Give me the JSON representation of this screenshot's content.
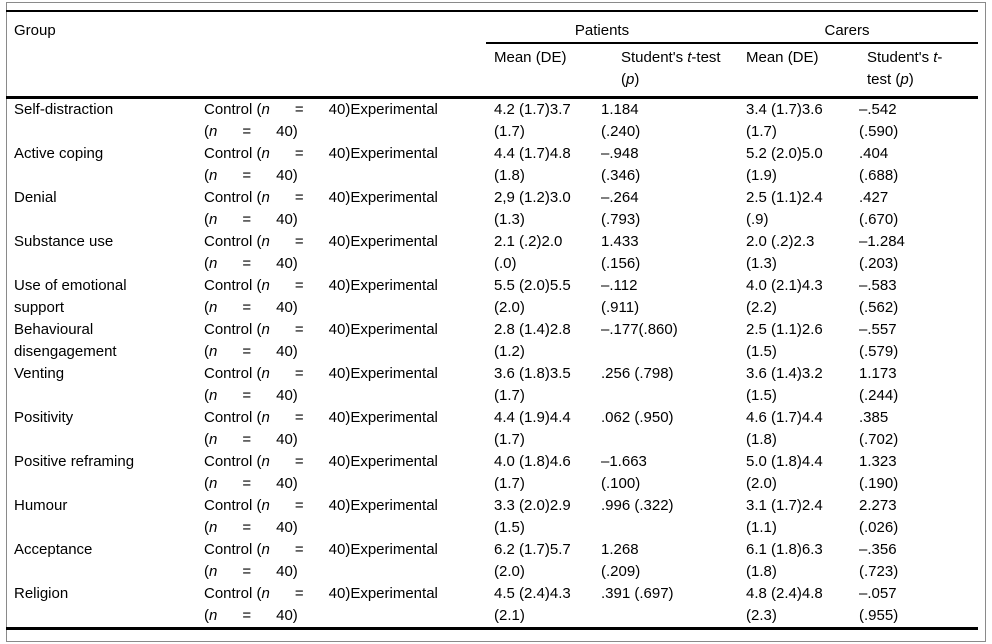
{
  "header": {
    "group_label": "Group",
    "patients_label": "Patients",
    "carers_label": "Carers",
    "patients_mean_label": "Mean (DE)",
    "patients_ttest_label": "Student's <i>t</i>-test\n(<i>p</i>)",
    "carers_mean_label": "Mean (DE)",
    "carers_ttest_label": "Student's <i>t</i>-\ntest (<i>p</i>)"
  },
  "cohort_cell": "Control (<i>n</i>      =      40)Experimental\n(<i>n</i>      =      40)",
  "rows": [
    {
      "group": "Self-distraction",
      "p_mean": "4.2 (1.7)3.7\n(1.7)",
      "p_t": "1.184\n(.240)",
      "c_mean": "3.4 (1.7)3.6\n(1.7)",
      "c_t": "–.542\n(.590)"
    },
    {
      "group": "Active coping",
      "p_mean": "4.4 (1.7)4.8\n(1.8)",
      "p_t": "–.948\n(.346)",
      "c_mean": "5.2 (2.0)5.0\n(1.9)",
      "c_t": ".404\n(.688)"
    },
    {
      "group": "Denial",
      "p_mean": "2,9 (1.2)3.0\n(1.3)",
      "p_t": "–.264\n(.793)",
      "c_mean": "2.5 (1.1)2.4\n(.9)",
      "c_t": ".427\n(.670)"
    },
    {
      "group": "Substance use",
      "p_mean": "2.1 (.2)2.0\n(.0)",
      "p_t": "1.433\n(.156)",
      "c_mean": "2.0 (.2)2.3\n(1.3)",
      "c_t": "–1.284\n(.203)"
    },
    {
      "group": "Use of emotional\nsupport",
      "p_mean": "5.5 (2.0)5.5\n(2.0)",
      "p_t": "–.112\n(.911)",
      "c_mean": "4.0 (2.1)4.3\n(2.2)",
      "c_t": "–.583\n(.562)"
    },
    {
      "group": "Behavioural\ndisengagement",
      "p_mean": "2.8 (1.4)2.8\n(1.2)",
      "p_t": "–.177(.860)",
      "c_mean": "2.5 (1.1)2.6\n(1.5)",
      "c_t": "–.557\n(.579)"
    },
    {
      "group": "Venting",
      "p_mean": "3.6 (1.8)3.5\n(1.7)",
      "p_t": ".256 (.798)",
      "c_mean": "3.6 (1.4)3.2\n(1.5)",
      "c_t": "1.173\n(.244)"
    },
    {
      "group": "Positivity",
      "p_mean": "4.4 (1.9)4.4\n(1.7)",
      "p_t": ".062 (.950)",
      "c_mean": "4.6 (1.7)4.4\n(1.8)",
      "c_t": ".385\n(.702)"
    },
    {
      "group": "Positive reframing",
      "p_mean": "4.0 (1.8)4.6\n(1.7)",
      "p_t": "–1.663\n(.100)",
      "c_mean": "5.0 (1.8)4.4\n(2.0)",
      "c_t": "1.323\n(.190)"
    },
    {
      "group": "Humour",
      "p_mean": "3.3 (2.0)2.9\n(1.5)",
      "p_t": ".996 (.322)",
      "c_mean": "3.1 (1.7)2.4\n(1.1)",
      "c_t": "2.273\n(.026)"
    },
    {
      "group": "Acceptance",
      "p_mean": "6.2 (1.7)5.7\n(2.0)",
      "p_t": "1.268\n(.209)",
      "c_mean": "6.1 (1.8)6.3\n(1.8)",
      "c_t": "–.356\n(.723)"
    },
    {
      "group": "Religion",
      "p_mean": "4.5 (2.4)4.3\n(2.1)",
      "p_t": ".391 (.697)",
      "c_mean": "4.8 (2.4)4.8\n(2.3)",
      "c_t": "–.057\n(.955)"
    }
  ]
}
